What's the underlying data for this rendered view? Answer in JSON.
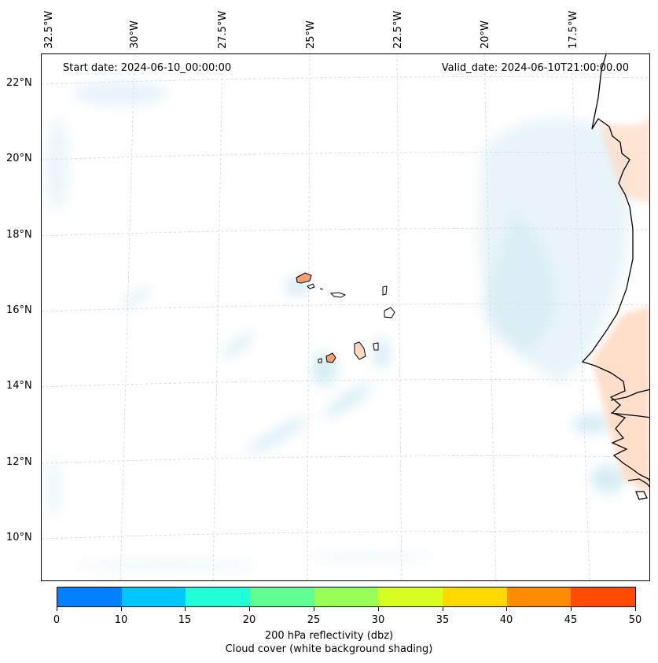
{
  "map": {
    "start_date": "Start date: 2024-06-10_00:00:00",
    "valid_date": "Valid_date: 2024-06-10T21:00:00.00",
    "longitude_labels": [
      "32.5°W",
      "30°W",
      "27.5°W",
      "25°W",
      "22.5°W",
      "20°W",
      "17.5°W"
    ],
    "latitude_labels": [
      "22°N",
      "20°N",
      "18°N",
      "16°N",
      "14°N",
      "12°N",
      "10°N"
    ]
  },
  "colorbar": {
    "ticks": [
      "0",
      "10",
      "15",
      "20",
      "25",
      "30",
      "35",
      "40",
      "45",
      "50"
    ],
    "colors": [
      "#0080ff",
      "#00c8ff",
      "#20ffd8",
      "#60ff90",
      "#98ff58",
      "#d8ff20",
      "#ffd800",
      "#ff8c00",
      "#ff4c00"
    ],
    "label": "200 hPa reflectivity (dbz)",
    "sublabel": "Cloud cover (white background shading)"
  },
  "colors": {
    "cloud": "#c8e6f0",
    "warm": "#ffd9c0",
    "island": "#f4a070",
    "coast": "#000000"
  }
}
